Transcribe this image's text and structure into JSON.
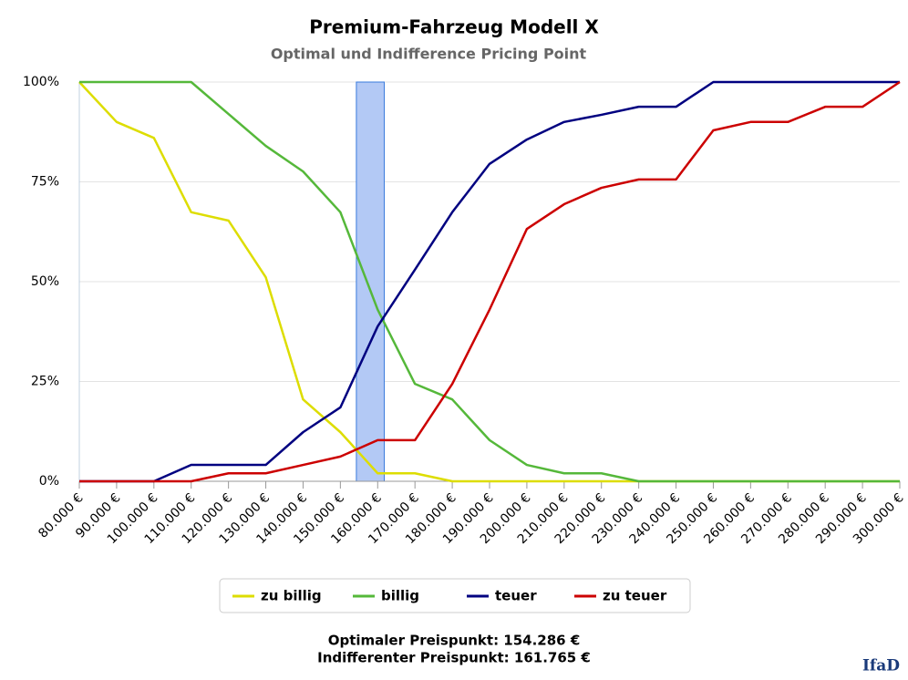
{
  "chart_data": {
    "type": "line",
    "title": "Premium-Fahrzeug Modell X",
    "subtitle": "Optimal und Indifference Pricing Point",
    "x": [
      80000,
      90000,
      100000,
      110000,
      120000,
      130000,
      140000,
      150000,
      160000,
      170000,
      180000,
      190000,
      200000,
      210000,
      220000,
      230000,
      240000,
      250000,
      260000,
      270000,
      280000,
      290000,
      300000
    ],
    "xlim": [
      80000,
      300000
    ],
    "xticks": [
      {
        "value": 80000,
        "label": "80.000 €"
      },
      {
        "value": 90000,
        "label": "90.000 €"
      },
      {
        "value": 100000,
        "label": "100.000 €"
      },
      {
        "value": 110000,
        "label": "110.000 €"
      },
      {
        "value": 120000,
        "label": "120.000 €"
      },
      {
        "value": 130000,
        "label": "130.000 €"
      },
      {
        "value": 140000,
        "label": "140.000 €"
      },
      {
        "value": 150000,
        "label": "150.000 €"
      },
      {
        "value": 160000,
        "label": "160.000 €"
      },
      {
        "value": 170000,
        "label": "170.000 €"
      },
      {
        "value": 180000,
        "label": "180.000 €"
      },
      {
        "value": 190000,
        "label": "190.000 €"
      },
      {
        "value": 200000,
        "label": "200.000 €"
      },
      {
        "value": 210000,
        "label": "210.000 €"
      },
      {
        "value": 220000,
        "label": "220.000 €"
      },
      {
        "value": 230000,
        "label": "230.000 €"
      },
      {
        "value": 240000,
        "label": "240.000 €"
      },
      {
        "value": 250000,
        "label": "250.000 €"
      },
      {
        "value": 260000,
        "label": "260.000 €"
      },
      {
        "value": 270000,
        "label": "270.000 €"
      },
      {
        "value": 280000,
        "label": "280.000 €"
      },
      {
        "value": 290000,
        "label": "290.000 €"
      },
      {
        "value": 300000,
        "label": "300.000 €"
      }
    ],
    "ylim": [
      0,
      100
    ],
    "yticks": [
      {
        "value": 0,
        "label": "0%"
      },
      {
        "value": 25,
        "label": "25%"
      },
      {
        "value": 50,
        "label": "50%"
      },
      {
        "value": 75,
        "label": "75%"
      },
      {
        "value": 100,
        "label": "100%"
      }
    ],
    "grid": true,
    "series": [
      {
        "name": "zu billig",
        "color": "#dddd00",
        "values": [
          100,
          90,
          86,
          67.4,
          65.3,
          51.1,
          20.5,
          12.3,
          2,
          2,
          0,
          0,
          0,
          0,
          0,
          0,
          0,
          0,
          0,
          0,
          0,
          0,
          0
        ]
      },
      {
        "name": "billig",
        "color": "#55b83a",
        "values": [
          100,
          100,
          100,
          100,
          92,
          84,
          77.6,
          67.4,
          43,
          24.4,
          20.5,
          10.3,
          4.1,
          2,
          2,
          0,
          0,
          0,
          0,
          0,
          0,
          0,
          0
        ]
      },
      {
        "name": "teuer",
        "color": "#000080",
        "values": [
          0,
          0,
          0,
          4.1,
          4.1,
          4.1,
          12.3,
          18.5,
          38.8,
          53,
          67.4,
          79.5,
          85.6,
          90,
          91.8,
          93.8,
          93.8,
          100,
          100,
          100,
          100,
          100,
          100
        ]
      },
      {
        "name": "zu teuer",
        "color": "#cc0000",
        "values": [
          0,
          0,
          0,
          0,
          2,
          2,
          4.1,
          6.2,
          10.3,
          10.3,
          24.4,
          43,
          63.2,
          69.4,
          73.5,
          75.6,
          75.6,
          87.9,
          90,
          90,
          93.8,
          93.8,
          100
        ]
      }
    ],
    "band": {
      "from": 154286,
      "to": 161765,
      "color": "#b3c9f5"
    },
    "notes": [
      "Optimaler Preispunkt: 154.286 €",
      "Indifferenter Preispunkt: 161.765 €"
    ],
    "logo": "IfaD"
  }
}
